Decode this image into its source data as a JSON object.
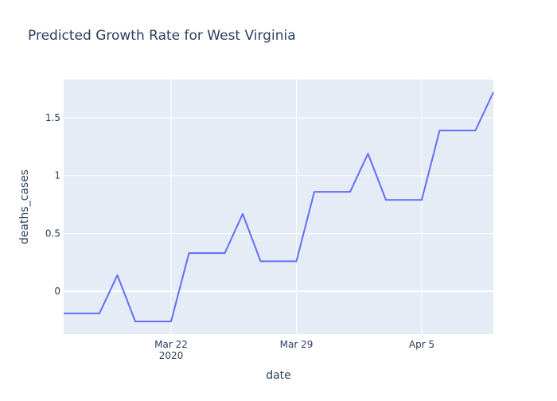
{
  "chart_data": {
    "type": "line",
    "title": "Predicted Growth Rate for West Virginia",
    "xlabel": "date",
    "ylabel": "deaths_cases",
    "x_tick_labels": [
      {
        "date": "2020-03-22",
        "label": "Mar 22",
        "sublabel": "2020"
      },
      {
        "date": "2020-03-29",
        "label": "Mar 29",
        "sublabel": ""
      },
      {
        "date": "2020-04-05",
        "label": "Apr 5",
        "sublabel": ""
      }
    ],
    "y_tick_labels": [
      {
        "value": 0,
        "label": "0"
      },
      {
        "value": 0.5,
        "label": "0.5"
      },
      {
        "value": 1,
        "label": "1"
      },
      {
        "value": 1.5,
        "label": "1.5"
      }
    ],
    "xlim": [
      "2020-03-16",
      "2020-04-09"
    ],
    "ylim": [
      -0.37,
      1.83
    ],
    "grid": true,
    "line_color": "#636efa",
    "plot_background": "#e5ecf6",
    "series": [
      {
        "x": [
          "2020-03-16",
          "2020-03-17",
          "2020-03-18",
          "2020-03-19",
          "2020-03-20",
          "2020-03-21",
          "2020-03-22",
          "2020-03-23",
          "2020-03-24",
          "2020-03-25",
          "2020-03-26",
          "2020-03-27",
          "2020-03-28",
          "2020-03-29",
          "2020-03-30",
          "2020-03-31",
          "2020-04-01",
          "2020-04-02",
          "2020-04-03",
          "2020-04-04",
          "2020-04-05",
          "2020-04-06",
          "2020-04-07",
          "2020-04-08",
          "2020-04-09"
        ],
        "y": [
          -0.19,
          -0.19,
          -0.19,
          0.14,
          -0.26,
          -0.26,
          -0.26,
          0.33,
          0.33,
          0.33,
          0.67,
          0.26,
          0.26,
          0.26,
          0.86,
          0.86,
          0.86,
          1.19,
          0.79,
          0.79,
          0.79,
          1.39,
          1.39,
          1.39,
          1.72
        ]
      }
    ]
  }
}
